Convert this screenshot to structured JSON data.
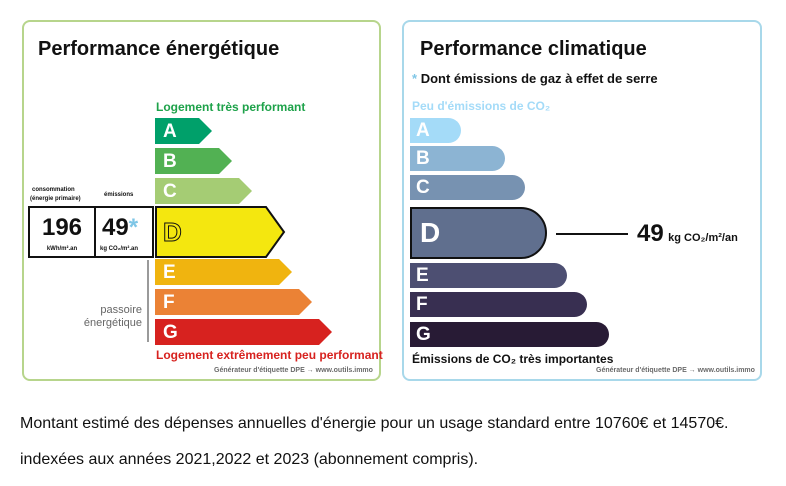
{
  "energy": {
    "title": "Performance énergétique",
    "top_label": "Logement très performant",
    "bottom_label": "Logement extrêmement peu performant",
    "passoire_line1": "passoire",
    "passoire_line2": "énergétique",
    "consumption_label_line1": "consommation",
    "consumption_label_line2": "(énergie primaire)",
    "emissions_label": "émissions",
    "consumption_value": "196",
    "consumption_unit": "kWh/m².an",
    "emissions_value": "49",
    "emissions_asterisk": "*",
    "emissions_unit": "kg CO₂/m².an",
    "current_class": "D",
    "classes": [
      {
        "letter": "A",
        "color": "#00a06a"
      },
      {
        "letter": "B",
        "color": "#52b153"
      },
      {
        "letter": "C",
        "color": "#a5cc74"
      },
      {
        "letter": "D",
        "color": "#f4e70f"
      },
      {
        "letter": "E",
        "color": "#f0b40f"
      },
      {
        "letter": "F",
        "color": "#eb8235"
      },
      {
        "letter": "G",
        "color": "#d7221f"
      }
    ],
    "credit": "Générateur d'étiquette DPE → www.outils.immo",
    "colors": {
      "border": "#b7d58c",
      "top_label": "#1ea24a",
      "bottom_label": "#d7221f",
      "asterisk": "#7fc6e6"
    }
  },
  "climate": {
    "title": "Performance climatique",
    "asterisk": "*",
    "subtitle": "Dont émissions de gaz à effet de serre",
    "top_label": "Peu d'émissions de CO₂",
    "bottom_label": "Émissions de CO₂ très importantes",
    "current_class": "D",
    "value": "49",
    "unit": "kg CO₂/m²/an",
    "classes": [
      {
        "letter": "A",
        "color": "#a4dbf8"
      },
      {
        "letter": "B",
        "color": "#8cb4d3"
      },
      {
        "letter": "C",
        "color": "#7792b1"
      },
      {
        "letter": "D",
        "color": "#606f8e"
      },
      {
        "letter": "E",
        "color": "#4d4f72"
      },
      {
        "letter": "F",
        "color": "#382f51"
      },
      {
        "letter": "G",
        "color": "#281b35"
      }
    ],
    "credit": "Générateur d'étiquette DPE → www.outils.immo",
    "colors": {
      "border": "#a8d8ea",
      "top_label": "#a4dbf8"
    }
  },
  "footer": {
    "line1": "Montant estimé des dépenses annuelles d'énergie pour un usage standard entre 10760€ et 14570€.",
    "line2": "indexées aux années 2021,2022  et 2023 (abonnement compris)."
  }
}
